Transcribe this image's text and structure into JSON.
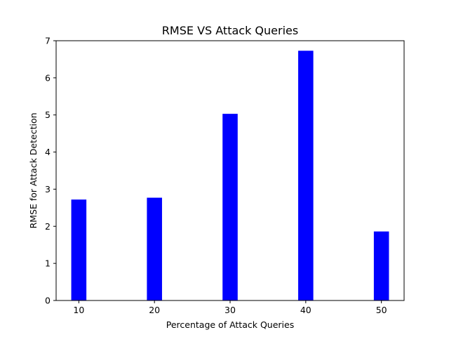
{
  "chart_data": {
    "type": "bar",
    "title": "RMSE VS Attack Queries",
    "xlabel": "Percentage of Attack Queries",
    "ylabel": "RMSE for Attack Detection",
    "categories": [
      "10",
      "20",
      "30",
      "40",
      "50"
    ],
    "x": [
      10,
      20,
      30,
      40,
      50
    ],
    "values": [
      2.72,
      2.77,
      5.03,
      6.73,
      1.86
    ],
    "xlim": [
      7,
      53
    ],
    "ylim": [
      0,
      7
    ],
    "yticks": [
      "0",
      "1",
      "2",
      "3",
      "4",
      "5",
      "6",
      "7"
    ],
    "bar_color": "#0000ff",
    "grid": false,
    "legend": false
  }
}
